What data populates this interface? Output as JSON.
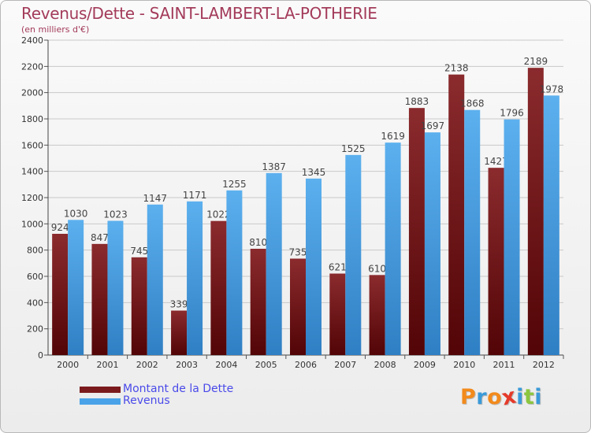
{
  "chart_data": {
    "type": "bar",
    "title": "Revenus/Dette - SAINT-LAMBERT-LA-POTHERIE",
    "subtitle": "(en milliers d'€)",
    "categories": [
      "2000",
      "2001",
      "2002",
      "2003",
      "2004",
      "2005",
      "2006",
      "2007",
      "2008",
      "2009",
      "2010",
      "2011",
      "2012"
    ],
    "series": [
      {
        "name": "Montant de la Dette",
        "color": "#7b1a1c",
        "values": [
          924,
          847,
          745,
          339,
          1022,
          810,
          735,
          621,
          610,
          1883,
          2138,
          1427,
          2189
        ]
      },
      {
        "name": "Revenus",
        "color": "#4aa3e8",
        "values": [
          1030,
          1023,
          1147,
          1171,
          1255,
          1387,
          1345,
          1525,
          1619,
          1697,
          1868,
          1796,
          1978
        ]
      }
    ],
    "y_ticks": [
      0,
      200,
      400,
      600,
      800,
      1000,
      1200,
      1400,
      1600,
      1800,
      2000,
      2200,
      2400
    ],
    "ylim": [
      0,
      2400
    ],
    "grid": true,
    "legend": "bottom-left"
  },
  "logo": {
    "text": "Proxiti",
    "letters": [
      {
        "ch": "P",
        "color": "#f28a1c"
      },
      {
        "ch": "r",
        "color": "#3a9ad9"
      },
      {
        "ch": "o",
        "color": "#f28a1c"
      },
      {
        "ch": "x",
        "color": "#e53a2a"
      },
      {
        "ch": "i",
        "color": "#3a9ad9"
      },
      {
        "ch": "t",
        "color": "#8cc63f"
      },
      {
        "ch": "i",
        "color": "#3a9ad9"
      }
    ]
  }
}
